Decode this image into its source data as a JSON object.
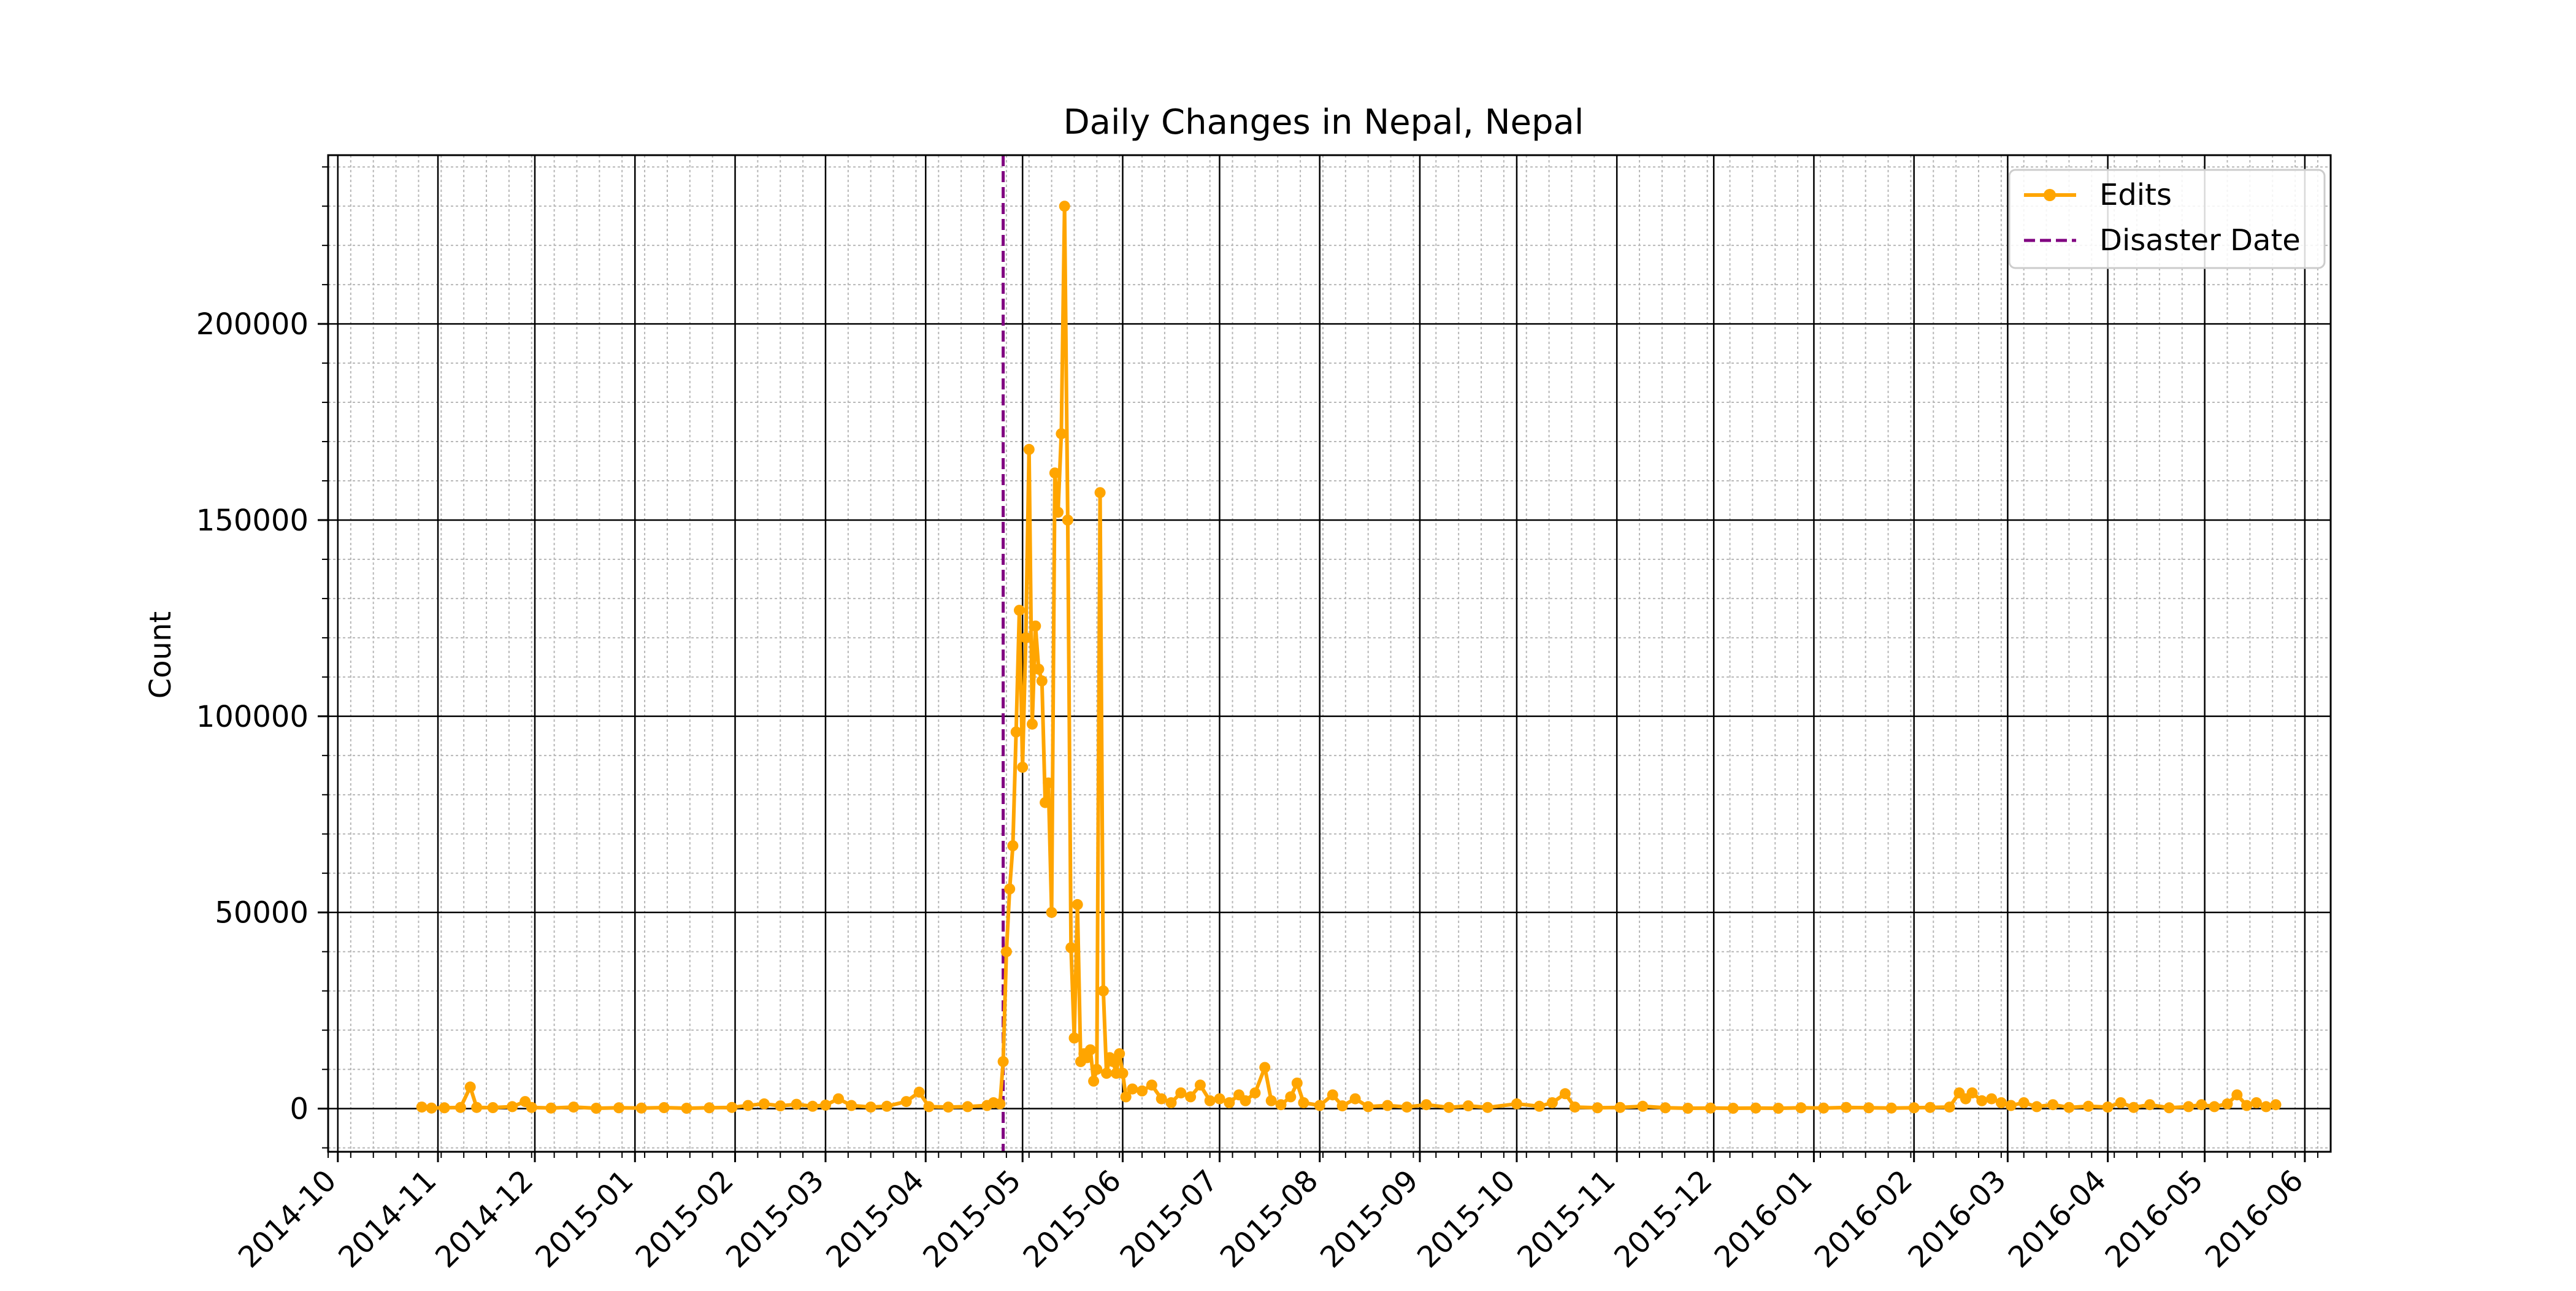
{
  "chart_data": {
    "type": "line",
    "title": "Daily Changes in Nepal, Nepal",
    "xlabel": "",
    "ylabel": "Count",
    "xlim": [
      "2014-09-28",
      "2016-06-09"
    ],
    "ylim": [
      -11000,
      243000
    ],
    "x_ticks": [
      "2014-10",
      "2014-11",
      "2014-12",
      "2015-01",
      "2015-02",
      "2015-03",
      "2015-04",
      "2015-05",
      "2015-06",
      "2015-07",
      "2015-08",
      "2015-09",
      "2015-10",
      "2015-11",
      "2015-12",
      "2016-01",
      "2016-02",
      "2016-03",
      "2016-04",
      "2016-05",
      "2016-06"
    ],
    "y_ticks": [
      0,
      50000,
      100000,
      150000,
      200000
    ],
    "grid": {
      "major": true,
      "minor": true
    },
    "legend": {
      "position": "top-right",
      "entries": [
        {
          "label": "Edits",
          "style": "line-marker",
          "color": "#FFA500"
        },
        {
          "label": "Disaster Date",
          "style": "dashed",
          "color": "#800080"
        }
      ]
    },
    "series": [
      {
        "name": "Edits",
        "color": "#FFA500",
        "points": [
          [
            "2014-10-27",
            400
          ],
          [
            "2014-10-30",
            150
          ],
          [
            "2014-11-03",
            200
          ],
          [
            "2014-11-08",
            300
          ],
          [
            "2014-11-11",
            5500
          ],
          [
            "2014-11-13",
            300
          ],
          [
            "2014-11-18",
            250
          ],
          [
            "2014-11-24",
            500
          ],
          [
            "2014-11-28",
            1800
          ],
          [
            "2014-11-30",
            300
          ],
          [
            "2014-12-06",
            150
          ],
          [
            "2014-12-13",
            400
          ],
          [
            "2014-12-20",
            100
          ],
          [
            "2014-12-27",
            200
          ],
          [
            "2015-01-03",
            150
          ],
          [
            "2015-01-10",
            250
          ],
          [
            "2015-01-17",
            100
          ],
          [
            "2015-01-24",
            200
          ],
          [
            "2015-01-31",
            300
          ],
          [
            "2015-02-05",
            800
          ],
          [
            "2015-02-10",
            1200
          ],
          [
            "2015-02-15",
            700
          ],
          [
            "2015-02-20",
            1100
          ],
          [
            "2015-02-25",
            600
          ],
          [
            "2015-03-01",
            900
          ],
          [
            "2015-03-05",
            2500
          ],
          [
            "2015-03-09",
            800
          ],
          [
            "2015-03-15",
            400
          ],
          [
            "2015-03-20",
            600
          ],
          [
            "2015-03-26",
            1800
          ],
          [
            "2015-03-30",
            4200
          ],
          [
            "2015-04-02",
            500
          ],
          [
            "2015-04-08",
            400
          ],
          [
            "2015-04-14",
            500
          ],
          [
            "2015-04-20",
            800
          ],
          [
            "2015-04-22",
            1500
          ],
          [
            "2015-04-24",
            1200
          ],
          [
            "2015-04-25",
            12000
          ],
          [
            "2015-04-26",
            40000
          ],
          [
            "2015-04-27",
            56000
          ],
          [
            "2015-04-28",
            67000
          ],
          [
            "2015-04-29",
            96000
          ],
          [
            "2015-04-30",
            127000
          ],
          [
            "2015-05-01",
            87000
          ],
          [
            "2015-05-02",
            120000
          ],
          [
            "2015-05-03",
            168000
          ],
          [
            "2015-05-04",
            98000
          ],
          [
            "2015-05-05",
            123000
          ],
          [
            "2015-05-06",
            112000
          ],
          [
            "2015-05-07",
            109000
          ],
          [
            "2015-05-08",
            78000
          ],
          [
            "2015-05-09",
            83000
          ],
          [
            "2015-05-10",
            50000
          ],
          [
            "2015-05-11",
            162000
          ],
          [
            "2015-05-12",
            152000
          ],
          [
            "2015-05-13",
            172000
          ],
          [
            "2015-05-14",
            230000
          ],
          [
            "2015-05-15",
            150000
          ],
          [
            "2015-05-16",
            41000
          ],
          [
            "2015-05-17",
            18000
          ],
          [
            "2015-05-18",
            52000
          ],
          [
            "2015-05-19",
            12000
          ],
          [
            "2015-05-20",
            14000
          ],
          [
            "2015-05-21",
            13000
          ],
          [
            "2015-05-22",
            15000
          ],
          [
            "2015-05-23",
            7000
          ],
          [
            "2015-05-24",
            10000
          ],
          [
            "2015-05-25",
            157000
          ],
          [
            "2015-05-26",
            30000
          ],
          [
            "2015-05-27",
            9000
          ],
          [
            "2015-05-28",
            13000
          ],
          [
            "2015-05-29",
            12000
          ],
          [
            "2015-05-30",
            9000
          ],
          [
            "2015-05-31",
            14000
          ],
          [
            "2015-06-01",
            9000
          ],
          [
            "2015-06-02",
            3000
          ],
          [
            "2015-06-04",
            5000
          ],
          [
            "2015-06-07",
            4500
          ],
          [
            "2015-06-10",
            6000
          ],
          [
            "2015-06-13",
            2500
          ],
          [
            "2015-06-16",
            1500
          ],
          [
            "2015-06-19",
            4000
          ],
          [
            "2015-06-22",
            3000
          ],
          [
            "2015-06-25",
            6000
          ],
          [
            "2015-06-28",
            2000
          ],
          [
            "2015-07-01",
            2500
          ],
          [
            "2015-07-04",
            1500
          ],
          [
            "2015-07-07",
            3500
          ],
          [
            "2015-07-09",
            2000
          ],
          [
            "2015-07-12",
            4000
          ],
          [
            "2015-07-15",
            10500
          ],
          [
            "2015-07-17",
            2000
          ],
          [
            "2015-07-20",
            1000
          ],
          [
            "2015-07-23",
            3000
          ],
          [
            "2015-07-25",
            6500
          ],
          [
            "2015-07-27",
            1500
          ],
          [
            "2015-08-01",
            800
          ],
          [
            "2015-08-05",
            3500
          ],
          [
            "2015-08-08",
            700
          ],
          [
            "2015-08-12",
            2500
          ],
          [
            "2015-08-16",
            500
          ],
          [
            "2015-08-22",
            800
          ],
          [
            "2015-08-28",
            400
          ],
          [
            "2015-09-03",
            1000
          ],
          [
            "2015-09-10",
            300
          ],
          [
            "2015-09-16",
            700
          ],
          [
            "2015-09-22",
            300
          ],
          [
            "2015-10-01",
            1200
          ],
          [
            "2015-10-08",
            600
          ],
          [
            "2015-10-12",
            1500
          ],
          [
            "2015-10-16",
            3800
          ],
          [
            "2015-10-19",
            400
          ],
          [
            "2015-10-26",
            200
          ],
          [
            "2015-11-02",
            300
          ],
          [
            "2015-11-09",
            600
          ],
          [
            "2015-11-16",
            200
          ],
          [
            "2015-11-23",
            100
          ],
          [
            "2015-11-30",
            150
          ],
          [
            "2015-12-07",
            100
          ],
          [
            "2015-12-14",
            150
          ],
          [
            "2015-12-21",
            100
          ],
          [
            "2015-12-28",
            200
          ],
          [
            "2016-01-04",
            150
          ],
          [
            "2016-01-11",
            300
          ],
          [
            "2016-01-18",
            200
          ],
          [
            "2016-01-25",
            150
          ],
          [
            "2016-02-01",
            200
          ],
          [
            "2016-02-06",
            300
          ],
          [
            "2016-02-12",
            400
          ],
          [
            "2016-02-15",
            4000
          ],
          [
            "2016-02-17",
            2500
          ],
          [
            "2016-02-19",
            4000
          ],
          [
            "2016-02-22",
            2000
          ],
          [
            "2016-02-25",
            2500
          ],
          [
            "2016-02-28",
            1500
          ],
          [
            "2016-03-02",
            800
          ],
          [
            "2016-03-06",
            1500
          ],
          [
            "2016-03-10",
            500
          ],
          [
            "2016-03-15",
            1000
          ],
          [
            "2016-03-20",
            300
          ],
          [
            "2016-03-26",
            600
          ],
          [
            "2016-04-01",
            400
          ],
          [
            "2016-04-05",
            1500
          ],
          [
            "2016-04-09",
            300
          ],
          [
            "2016-04-14",
            1000
          ],
          [
            "2016-04-20",
            200
          ],
          [
            "2016-04-26",
            500
          ],
          [
            "2016-04-30",
            1000
          ],
          [
            "2016-05-04",
            500
          ],
          [
            "2016-05-08",
            1200
          ],
          [
            "2016-05-11",
            3500
          ],
          [
            "2016-05-14",
            800
          ],
          [
            "2016-05-17",
            1500
          ],
          [
            "2016-05-20",
            500
          ],
          [
            "2016-05-23",
            1000
          ]
        ]
      }
    ],
    "vlines": [
      {
        "name": "Disaster Date",
        "x": "2015-04-25",
        "color": "#800080",
        "style": "dashed"
      }
    ]
  }
}
